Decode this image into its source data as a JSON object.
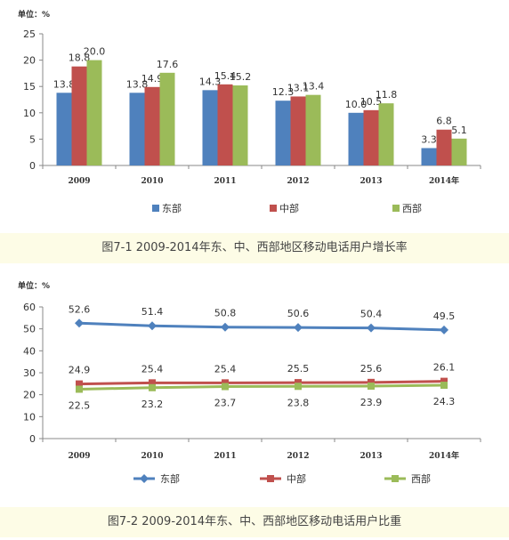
{
  "chart_data": [
    {
      "type": "bar",
      "unit_label": "单位：%",
      "categories": [
        "2009",
        "2010",
        "2011",
        "2012",
        "2013",
        "2014年"
      ],
      "ylim": [
        0,
        25
      ],
      "yticks": [
        0,
        5,
        10,
        15,
        20,
        25
      ],
      "series": [
        {
          "name": "东部",
          "color": "#4f81bd",
          "values": [
            13.8,
            13.8,
            14.3,
            12.3,
            10.0,
            3.3
          ]
        },
        {
          "name": "中部",
          "color": "#c0504d",
          "values": [
            18.8,
            14.9,
            15.4,
            13.1,
            10.5,
            6.8
          ]
        },
        {
          "name": "西部",
          "color": "#9bbb59",
          "values": [
            20.0,
            17.6,
            15.2,
            13.4,
            11.8,
            5.1
          ]
        }
      ],
      "data_labels": [
        [
          "13.8",
          "13.8",
          "14.3",
          "12.3",
          "10.0",
          "3.3"
        ],
        [
          "18.8",
          "14.9",
          "15.4",
          "13.1",
          "10.5",
          "6.8"
        ],
        [
          "20.0",
          "17.6",
          "15.2",
          "13.4",
          "11.8",
          "5.1"
        ]
      ],
      "legend_position": "bottom",
      "grid": false,
      "caption": "图7-1 2009-2014年东、中、西部地区移动电话用户增长率"
    },
    {
      "type": "line",
      "unit_label": "单位：%",
      "categories": [
        "2009",
        "2010",
        "2011",
        "2012",
        "2013",
        "2014年"
      ],
      "ylim": [
        0,
        60
      ],
      "yticks": [
        0,
        10,
        20,
        30,
        40,
        50,
        60
      ],
      "series": [
        {
          "name": "东部",
          "color": "#4f81bd",
          "marker": "diamond",
          "values": [
            52.6,
            51.4,
            50.8,
            50.6,
            50.4,
            49.5
          ]
        },
        {
          "name": "中部",
          "color": "#c0504d",
          "marker": "square",
          "values": [
            24.9,
            25.4,
            25.4,
            25.5,
            25.6,
            26.1
          ]
        },
        {
          "name": "西部",
          "color": "#9bbb59",
          "marker": "triangle",
          "values": [
            22.5,
            23.2,
            23.7,
            23.8,
            23.9,
            24.3
          ]
        }
      ],
      "data_labels": [
        [
          "52.6",
          "51.4",
          "50.8",
          "50.6",
          "50.4",
          "49.5"
        ],
        [
          "24.9",
          "25.4",
          "25.4",
          "25.5",
          "25.6",
          "26.1"
        ],
        [
          "22.5",
          "23.2",
          "23.7",
          "23.8",
          "23.9",
          "24.3"
        ]
      ],
      "legend_position": "bottom",
      "grid": false,
      "caption": "图7-2 2009-2014年东、中、西部地区移动电话用户比重"
    }
  ]
}
